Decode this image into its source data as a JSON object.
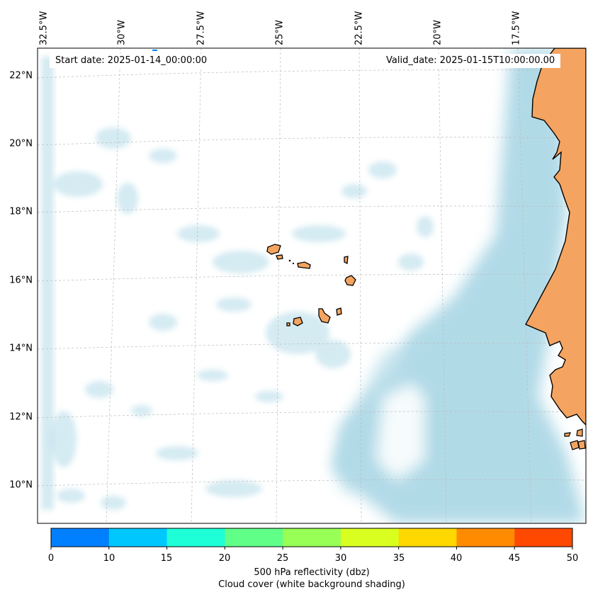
{
  "map": {
    "lon_labels": [
      "32.5°W",
      "30°W",
      "27.5°W",
      "25°W",
      "22.5°W",
      "20°W",
      "17.5°W"
    ],
    "lat_labels": [
      "22°N",
      "20°N",
      "18°N",
      "16°N",
      "14°N",
      "12°N",
      "10°N"
    ],
    "start_date": "Start date: 2025-01-14_00:00:00",
    "valid_date": "Valid_date: 2025-01-15T10:00:00.00",
    "land_color": "#f4a460",
    "cloud_color": "#add8e6",
    "coastline_color": "#000000"
  },
  "colorbar": {
    "ticks": [
      "0",
      "10",
      "15",
      "20",
      "25",
      "30",
      "35",
      "40",
      "45",
      "50"
    ],
    "colors": [
      "#0080ff",
      "#00c8ff",
      "#1effd8",
      "#60ff88",
      "#98ff56",
      "#d8ff20",
      "#ffd800",
      "#ff8c00",
      "#ff4800"
    ],
    "label_line1": "500 hPa reflectivity (dbz)",
    "label_line2": "Cloud cover (white background shading)"
  }
}
